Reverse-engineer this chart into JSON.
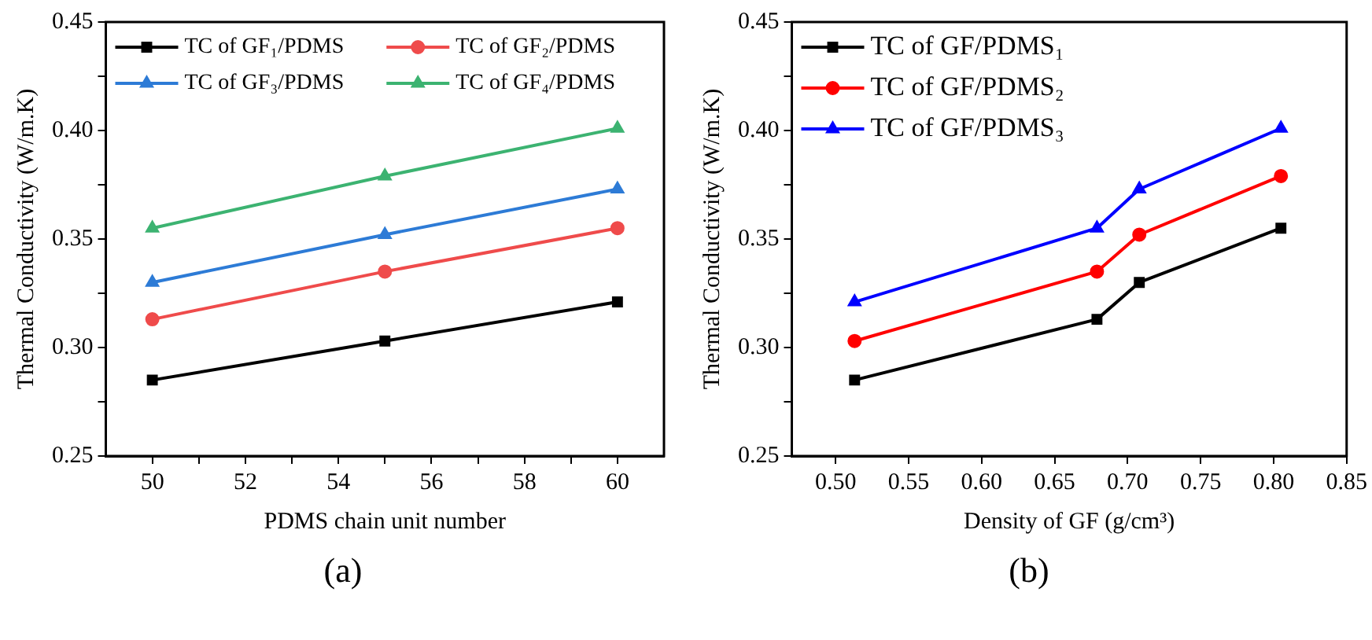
{
  "chart_data": [
    {
      "type": "line",
      "xlabel": "PDMS chain unit number",
      "ylabel": "Thermal Conductivity (W/m.K)",
      "x": [
        50,
        55,
        60
      ],
      "series": [
        {
          "name": "TC of GF₁/PDMS",
          "color": "#000000",
          "marker": "square",
          "values": [
            0.285,
            0.303,
            0.321
          ]
        },
        {
          "name": "TC of GF₂/PDMS",
          "color": "#ef4b4b",
          "marker": "circle",
          "values": [
            0.313,
            0.335,
            0.355
          ]
        },
        {
          "name": "TC of GF₃/PDMS",
          "color": "#2d7bd6",
          "marker": "triangle",
          "values": [
            0.33,
            0.352,
            0.373
          ]
        },
        {
          "name": "TC of GF₄/PDMS",
          "color": "#3cb371",
          "marker": "triangle",
          "values": [
            0.355,
            0.379,
            0.401
          ]
        }
      ],
      "xlim": [
        49,
        61
      ],
      "xticks": [
        50,
        {
          "value": 51,
          "label": null
        },
        52,
        {
          "value": 53,
          "label": null
        },
        54,
        {
          "value": 55,
          "label": null
        },
        56,
        {
          "value": 57,
          "label": null
        },
        58,
        {
          "value": 59,
          "label": null
        },
        60
      ],
      "ylim": [
        0.25,
        0.45
      ],
      "yticks": [
        {
          "value": 0.25,
          "label": "0.25"
        },
        {
          "value": 0.275,
          "label": null
        },
        {
          "value": 0.3,
          "label": "0.30"
        },
        {
          "value": 0.325,
          "label": null
        },
        {
          "value": 0.35,
          "label": "0.35"
        },
        {
          "value": 0.375,
          "label": null
        },
        {
          "value": 0.4,
          "label": "0.40"
        },
        {
          "value": 0.425,
          "label": null
        },
        {
          "value": 0.45,
          "label": "0.45"
        }
      ],
      "grid": false,
      "legend": "top left",
      "line_style": "solid",
      "annotations": [
        "(a)"
      ]
    },
    {
      "type": "line",
      "xlabel": "Density of GF (g/cm³)",
      "ylabel": "Thermal Conductivity (W/m.K)",
      "x": [
        0.513,
        0.679,
        0.708,
        0.805
      ],
      "series": [
        {
          "name": "TC of GF/PDMS₁",
          "color": "#000000",
          "marker": "square",
          "values": [
            0.285,
            0.313,
            0.33,
            0.355
          ]
        },
        {
          "name": "TC of GF/PDMS₂",
          "color": "#ff0000",
          "marker": "circle",
          "values": [
            0.303,
            0.335,
            0.352,
            0.379
          ]
        },
        {
          "name": "TC of GF/PDMS₃",
          "color": "#0000ff",
          "marker": "triangle",
          "values": [
            0.321,
            0.355,
            0.373,
            0.401
          ]
        }
      ],
      "xlim": [
        0.47,
        0.85
      ],
      "xticks": [
        {
          "value": 0.5,
          "label": "0.50"
        },
        0.55,
        {
          "value": 0.6,
          "label": "0.60"
        },
        0.65,
        {
          "value": 0.7,
          "label": "0.70"
        },
        0.75,
        {
          "value": 0.8,
          "label": "0.80"
        },
        0.85
      ],
      "ylim": [
        0.25,
        0.45
      ],
      "yticks": [
        {
          "value": 0.25,
          "label": "0.25"
        },
        {
          "value": 0.275,
          "label": null
        },
        {
          "value": 0.3,
          "label": "0.30"
        },
        {
          "value": 0.325,
          "label": null
        },
        {
          "value": 0.35,
          "label": "0.35"
        },
        {
          "value": 0.375,
          "label": null
        },
        {
          "value": 0.4,
          "label": "0.40"
        },
        {
          "value": 0.425,
          "label": null
        },
        {
          "value": 0.45,
          "label": "0.45"
        }
      ],
      "grid": false,
      "legend": "top left",
      "line_style": "solid",
      "annotations": [
        "(b)"
      ]
    }
  ]
}
